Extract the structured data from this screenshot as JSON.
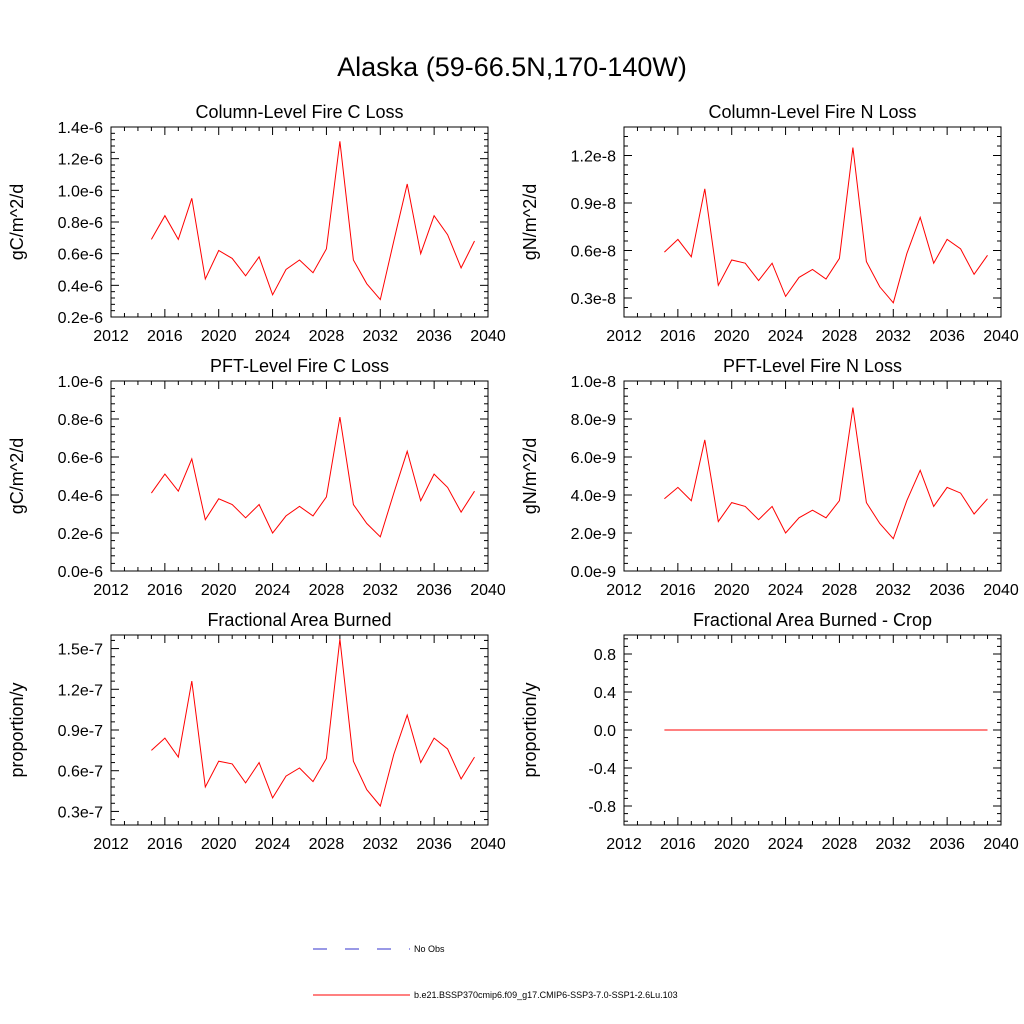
{
  "page": {
    "title": "Alaska (59-66.5N,170-140W)"
  },
  "legend": {
    "obs_label": "No Obs",
    "obs_color": "#3333cc",
    "model_label": "b.e21.BSSP370cmip6.f09_g17.CMIP6-SSP3-7.0-SSP1-2.6Lu.103",
    "model_color": "#ff0000"
  },
  "chart_data": [
    {
      "type": "line",
      "title": "Column-Level Fire C Loss",
      "xlabel": "",
      "ylabel": "gC/m^2/d",
      "xlim": [
        2012,
        2040
      ],
      "ylim": [
        2e-07,
        1.4e-06
      ],
      "xticks": [
        2012,
        2016,
        2020,
        2024,
        2028,
        2032,
        2036,
        2040
      ],
      "xtick_labels": [
        "2012",
        "2016",
        "2020",
        "2024",
        "2028",
        "2032",
        "2036",
        "2040"
      ],
      "yticks": [
        2e-07,
        4e-07,
        6e-07,
        8e-07,
        1e-06,
        1.2e-06,
        1.4e-06
      ],
      "ytick_labels": [
        "0.2e-6",
        "0.4e-6",
        "0.6e-6",
        "0.8e-6",
        "1.0e-6",
        "1.2e-6",
        "1.4e-6"
      ],
      "x": [
        2015,
        2016,
        2017,
        2018,
        2019,
        2020,
        2021,
        2022,
        2023,
        2024,
        2025,
        2026,
        2027,
        2028,
        2029,
        2030,
        2031,
        2032,
        2033,
        2034,
        2035,
        2036,
        2037,
        2038,
        2039
      ],
      "series": [
        {
          "name": "b.e21.BSSP370cmip6.f09_g17.CMIP6-SSP3-7.0-SSP1-2.6Lu.103",
          "values": [
            6.9e-07,
            8.4e-07,
            6.9e-07,
            9.5e-07,
            4.4e-07,
            6.2e-07,
            5.7e-07,
            4.6e-07,
            5.8e-07,
            3.4e-07,
            5e-07,
            5.6e-07,
            4.8e-07,
            6.3e-07,
            1.31e-06,
            5.6e-07,
            4.1e-07,
            3.1e-07,
            6.8e-07,
            1.04e-06,
            6e-07,
            8.4e-07,
            7.2e-07,
            5.1e-07,
            6.8e-07
          ]
        }
      ]
    },
    {
      "type": "line",
      "title": "Column-Level Fire N Loss",
      "xlabel": "",
      "ylabel": "gN/m^2/d",
      "xlim": [
        2012,
        2040
      ],
      "ylim": [
        1.8e-09,
        1.38e-08
      ],
      "xticks": [
        2012,
        2016,
        2020,
        2024,
        2028,
        2032,
        2036,
        2040
      ],
      "xtick_labels": [
        "2012",
        "2016",
        "2020",
        "2024",
        "2028",
        "2032",
        "2036",
        "2040"
      ],
      "yticks": [
        3e-09,
        6e-09,
        9e-09,
        1.2e-08
      ],
      "ytick_labels": [
        "0.3e-8",
        "0.6e-8",
        "0.9e-8",
        "1.2e-8"
      ],
      "x": [
        2015,
        2016,
        2017,
        2018,
        2019,
        2020,
        2021,
        2022,
        2023,
        2024,
        2025,
        2026,
        2027,
        2028,
        2029,
        2030,
        2031,
        2032,
        2033,
        2034,
        2035,
        2036,
        2037,
        2038,
        2039
      ],
      "series": [
        {
          "name": "b.e21.BSSP370cmip6.f09_g17.CMIP6-SSP3-7.0-SSP1-2.6Lu.103",
          "values": [
            5.9e-09,
            6.7e-09,
            5.6e-09,
            9.9e-09,
            3.8e-09,
            5.4e-09,
            5.2e-09,
            4.1e-09,
            5.2e-09,
            3.1e-09,
            4.3e-09,
            4.8e-09,
            4.2e-09,
            5.5e-09,
            1.25e-08,
            5.3e-09,
            3.7e-09,
            2.7e-09,
            5.8e-09,
            8.1e-09,
            5.2e-09,
            6.7e-09,
            6.1e-09,
            4.5e-09,
            5.7e-09
          ]
        }
      ]
    },
    {
      "type": "line",
      "title": "PFT-Level Fire C Loss",
      "xlabel": "",
      "ylabel": "gC/m^2/d",
      "xlim": [
        2012,
        2040
      ],
      "ylim": [
        0.0,
        1e-06
      ],
      "xticks": [
        2012,
        2016,
        2020,
        2024,
        2028,
        2032,
        2036,
        2040
      ],
      "xtick_labels": [
        "2012",
        "2016",
        "2020",
        "2024",
        "2028",
        "2032",
        "2036",
        "2040"
      ],
      "yticks": [
        0.0,
        2e-07,
        4e-07,
        6e-07,
        8e-07,
        1e-06
      ],
      "ytick_labels": [
        "0.0e-6",
        "0.2e-6",
        "0.4e-6",
        "0.6e-6",
        "0.8e-6",
        "1.0e-6"
      ],
      "x": [
        2015,
        2016,
        2017,
        2018,
        2019,
        2020,
        2021,
        2022,
        2023,
        2024,
        2025,
        2026,
        2027,
        2028,
        2029,
        2030,
        2031,
        2032,
        2033,
        2034,
        2035,
        2036,
        2037,
        2038,
        2039
      ],
      "series": [
        {
          "name": "b.e21.BSSP370cmip6.f09_g17.CMIP6-SSP3-7.0-SSP1-2.6Lu.103",
          "values": [
            4.1e-07,
            5.1e-07,
            4.2e-07,
            5.9e-07,
            2.7e-07,
            3.8e-07,
            3.5e-07,
            2.8e-07,
            3.5e-07,
            2e-07,
            2.9e-07,
            3.4e-07,
            2.9e-07,
            3.9e-07,
            8.1e-07,
            3.5e-07,
            2.5e-07,
            1.8e-07,
            4.1e-07,
            6.3e-07,
            3.7e-07,
            5.1e-07,
            4.4e-07,
            3.1e-07,
            4.2e-07
          ]
        }
      ]
    },
    {
      "type": "line",
      "title": "PFT-Level Fire N Loss",
      "xlabel": "",
      "ylabel": "gN/m^2/d",
      "xlim": [
        2012,
        2040
      ],
      "ylim": [
        0.0,
        1e-08
      ],
      "xticks": [
        2012,
        2016,
        2020,
        2024,
        2028,
        2032,
        2036,
        2040
      ],
      "xtick_labels": [
        "2012",
        "2016",
        "2020",
        "2024",
        "2028",
        "2032",
        "2036",
        "2040"
      ],
      "yticks": [
        0.0,
        2e-09,
        4e-09,
        6e-09,
        8e-09,
        1e-08
      ],
      "ytick_labels": [
        "0.0e-9",
        "2.0e-9",
        "4.0e-9",
        "6.0e-9",
        "8.0e-9",
        "1.0e-8"
      ],
      "x": [
        2015,
        2016,
        2017,
        2018,
        2019,
        2020,
        2021,
        2022,
        2023,
        2024,
        2025,
        2026,
        2027,
        2028,
        2029,
        2030,
        2031,
        2032,
        2033,
        2034,
        2035,
        2036,
        2037,
        2038,
        2039
      ],
      "series": [
        {
          "name": "b.e21.BSSP370cmip6.f09_g17.CMIP6-SSP3-7.0-SSP1-2.6Lu.103",
          "values": [
            3.8e-09,
            4.4e-09,
            3.7e-09,
            6.9e-09,
            2.6e-09,
            3.6e-09,
            3.4e-09,
            2.7e-09,
            3.4e-09,
            2e-09,
            2.8e-09,
            3.2e-09,
            2.8e-09,
            3.7e-09,
            8.6e-09,
            3.6e-09,
            2.5e-09,
            1.7e-09,
            3.7e-09,
            5.3e-09,
            3.4e-09,
            4.4e-09,
            4.1e-09,
            3e-09,
            3.8e-09
          ]
        }
      ]
    },
    {
      "type": "line",
      "title": "Fractional Area Burned",
      "xlabel": "",
      "ylabel": "proportion/y",
      "xlim": [
        2012,
        2040
      ],
      "ylim": [
        2e-08,
        1.6e-07
      ],
      "xticks": [
        2012,
        2016,
        2020,
        2024,
        2028,
        2032,
        2036,
        2040
      ],
      "xtick_labels": [
        "2012",
        "2016",
        "2020",
        "2024",
        "2028",
        "2032",
        "2036",
        "2040"
      ],
      "yticks": [
        3e-08,
        6e-08,
        9e-08,
        1.2e-07,
        1.5e-07
      ],
      "ytick_labels": [
        "0.3e-7",
        "0.6e-7",
        "0.9e-7",
        "1.2e-7",
        "1.5e-7"
      ],
      "x": [
        2015,
        2016,
        2017,
        2018,
        2019,
        2020,
        2021,
        2022,
        2023,
        2024,
        2025,
        2026,
        2027,
        2028,
        2029,
        2030,
        2031,
        2032,
        2033,
        2034,
        2035,
        2036,
        2037,
        2038,
        2039
      ],
      "series": [
        {
          "name": "b.e21.BSSP370cmip6.f09_g17.CMIP6-SSP3-7.0-SSP1-2.6Lu.103",
          "values": [
            7.5e-08,
            8.4e-08,
            7e-08,
            1.26e-07,
            4.8e-08,
            6.7e-08,
            6.5e-08,
            5.1e-08,
            6.6e-08,
            4e-08,
            5.6e-08,
            6.2e-08,
            5.2e-08,
            6.9e-08,
            1.57e-07,
            6.7e-08,
            4.6e-08,
            3.4e-08,
            7.2e-08,
            1.01e-07,
            6.6e-08,
            8.4e-08,
            7.6e-08,
            5.4e-08,
            7e-08
          ]
        }
      ]
    },
    {
      "type": "line",
      "title": "Fractional Area Burned - Crop",
      "xlabel": "",
      "ylabel": "proportion/y",
      "xlim": [
        2012,
        2040
      ],
      "ylim": [
        -1.0,
        1.0
      ],
      "xticks": [
        2012,
        2016,
        2020,
        2024,
        2028,
        2032,
        2036,
        2040
      ],
      "xtick_labels": [
        "2012",
        "2016",
        "2020",
        "2024",
        "2028",
        "2032",
        "2036",
        "2040"
      ],
      "yticks": [
        -0.8,
        -0.4,
        0.0,
        0.4,
        0.8
      ],
      "ytick_labels": [
        "-0.8",
        "-0.4",
        "0.0",
        "0.4",
        "0.8"
      ],
      "x": [
        2015,
        2016,
        2017,
        2018,
        2019,
        2020,
        2021,
        2022,
        2023,
        2024,
        2025,
        2026,
        2027,
        2028,
        2029,
        2030,
        2031,
        2032,
        2033,
        2034,
        2035,
        2036,
        2037,
        2038,
        2039
      ],
      "series": [
        {
          "name": "b.e21.BSSP370cmip6.f09_g17.CMIP6-SSP3-7.0-SSP1-2.6Lu.103",
          "values": [
            0,
            0,
            0,
            0,
            0,
            0,
            0,
            0,
            0,
            0,
            0,
            0,
            0,
            0,
            0,
            0,
            0,
            0,
            0,
            0,
            0,
            0,
            0,
            0,
            0
          ]
        }
      ]
    }
  ]
}
